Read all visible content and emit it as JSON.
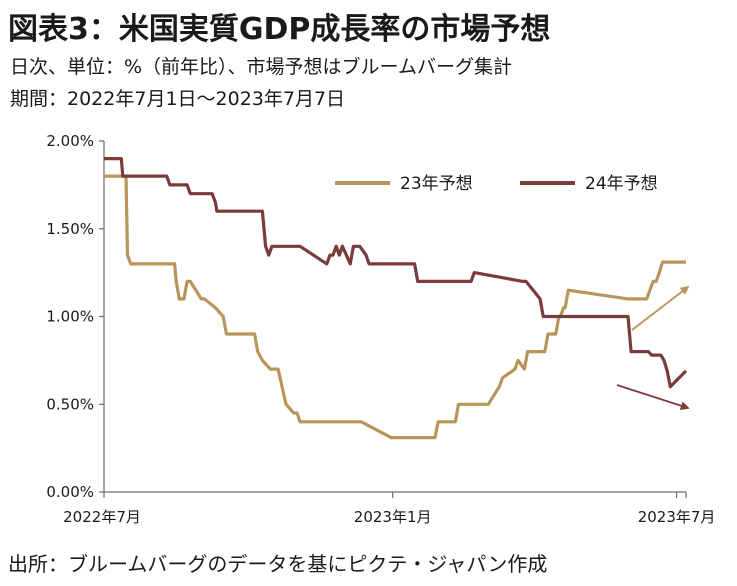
{
  "title": "図表3：米国実質GDP成長率の市場予想",
  "subtitle": "日次、単位：%（前年比）、市場予想はブルームバーグ集計",
  "period": "期間：2022年7月1日～2023年7月7日",
  "source": "出所：ブルームバーグのデータを基にピクテ・ジャパン作成",
  "chart_data": {
    "type": "line",
    "x_type": "date",
    "xlim": [
      "2022-07-01",
      "2023-07-07"
    ],
    "ylim": [
      0,
      2.0
    ],
    "yticks": [
      0,
      0.5,
      1.0,
      1.5,
      2.0
    ],
    "ytick_labels": [
      "0.00%",
      "0.50%",
      "1.00%",
      "1.50%",
      "2.00%"
    ],
    "xticks": [
      "2022-07-01",
      "2023-01-01",
      "2023-07-01"
    ],
    "xtick_labels": [
      "2022年7月",
      "2023年1月",
      "2023年7月"
    ],
    "grid": false,
    "legend_position": "top-right",
    "series": [
      {
        "name": "23年予想",
        "color": "#B8955A",
        "x": [
          "2022-07-01",
          "2022-07-15",
          "2022-07-16",
          "2022-07-18",
          "2022-08-15",
          "2022-08-16",
          "2022-08-18",
          "2022-08-21",
          "2022-08-23",
          "2022-08-25",
          "2022-09-01",
          "2022-09-03",
          "2022-09-10",
          "2022-09-15",
          "2022-09-17",
          "2022-10-05",
          "2022-10-07",
          "2022-10-10",
          "2022-10-15",
          "2022-10-20",
          "2022-10-25",
          "2022-10-30",
          "2022-11-01",
          "2022-11-03",
          "2022-12-10",
          "2022-12-12",
          "2022-12-31",
          "2023-01-02",
          "2023-01-04",
          "2023-01-06",
          "2023-01-08",
          "2023-01-10",
          "2023-01-28",
          "2023-01-30",
          "2023-02-10",
          "2023-02-12",
          "2023-02-20",
          "2023-02-22",
          "2023-02-24",
          "2023-02-26",
          "2023-03-01",
          "2023-03-03",
          "2023-03-10",
          "2023-03-12",
          "2023-03-20",
          "2023-03-22",
          "2023-03-26",
          "2023-03-28",
          "2023-04-05",
          "2023-04-07",
          "2023-04-08",
          "2023-04-10",
          "2023-04-15",
          "2023-04-17",
          "2023-04-18",
          "2023-04-20",
          "2023-04-21",
          "2023-04-23",
          "2023-05-31",
          "2023-06-02",
          "2023-06-10",
          "2023-06-12",
          "2023-06-14",
          "2023-06-16",
          "2023-06-18",
          "2023-06-20",
          "2023-06-22",
          "2023-07-07"
        ],
        "y": [
          1.8,
          1.8,
          1.35,
          1.3,
          1.3,
          1.2,
          1.1,
          1.1,
          1.2,
          1.2,
          1.1,
          1.1,
          1.05,
          1.0,
          0.9,
          0.9,
          0.8,
          0.75,
          0.7,
          0.7,
          0.5,
          0.45,
          0.45,
          0.4,
          0.4,
          0.4,
          0.31,
          0.31,
          0.31,
          0.31,
          0.31,
          0.31,
          0.31,
          0.4,
          0.4,
          0.5,
          0.5,
          0.5,
          0.5,
          0.5,
          0.5,
          0.5,
          0.6,
          0.65,
          0.7,
          0.75,
          0.7,
          0.8,
          0.8,
          0.8,
          0.8,
          0.9,
          0.9,
          1.0,
          1.0,
          1.05,
          1.05,
          1.15,
          1.1,
          1.1,
          1.1,
          1.1,
          1.15,
          1.2,
          1.2,
          1.25,
          1.31,
          1.31
        ]
      },
      {
        "name": "24年予想",
        "color": "#7A3B3B",
        "x": [
          "2022-07-01",
          "2022-07-12",
          "2022-07-13",
          "2022-08-10",
          "2022-08-12",
          "2022-08-23",
          "2022-08-25",
          "2022-09-08",
          "2022-09-10",
          "2022-09-11",
          "2022-09-13",
          "2022-10-10",
          "2022-10-12",
          "2022-10-14",
          "2022-10-16",
          "2022-11-01",
          "2022-11-03",
          "2022-11-20",
          "2022-11-22",
          "2022-11-24",
          "2022-11-26",
          "2022-11-28",
          "2022-11-30",
          "2022-12-05",
          "2022-12-07",
          "2022-12-09",
          "2022-12-11",
          "2022-12-15",
          "2022-12-17",
          "2022-12-31",
          "2023-01-02",
          "2023-01-15",
          "2023-01-17",
          "2023-02-20",
          "2023-02-22",
          "2023-03-25",
          "2023-03-27",
          "2023-04-05",
          "2023-04-07",
          "2023-04-08",
          "2023-04-10",
          "2023-05-31",
          "2023-06-02",
          "2023-06-13",
          "2023-06-15",
          "2023-06-21",
          "2023-06-23",
          "2023-06-25",
          "2023-06-27",
          "2023-07-07"
        ],
        "y": [
          1.9,
          1.9,
          1.8,
          1.8,
          1.75,
          1.75,
          1.7,
          1.7,
          1.65,
          1.6,
          1.6,
          1.6,
          1.4,
          1.35,
          1.4,
          1.4,
          1.4,
          1.3,
          1.35,
          1.35,
          1.4,
          1.35,
          1.4,
          1.3,
          1.4,
          1.4,
          1.4,
          1.35,
          1.3,
          1.3,
          1.3,
          1.3,
          1.2,
          1.2,
          1.25,
          1.2,
          1.2,
          1.1,
          1.0,
          1.0,
          1.0,
          1.0,
          0.8,
          0.8,
          0.78,
          0.78,
          0.75,
          0.69,
          0.6,
          0.69
        ]
      }
    ],
    "arrows": [
      {
        "series": "23年予想",
        "direction": "up"
      },
      {
        "series": "24年予想",
        "direction": "down"
      }
    ]
  }
}
